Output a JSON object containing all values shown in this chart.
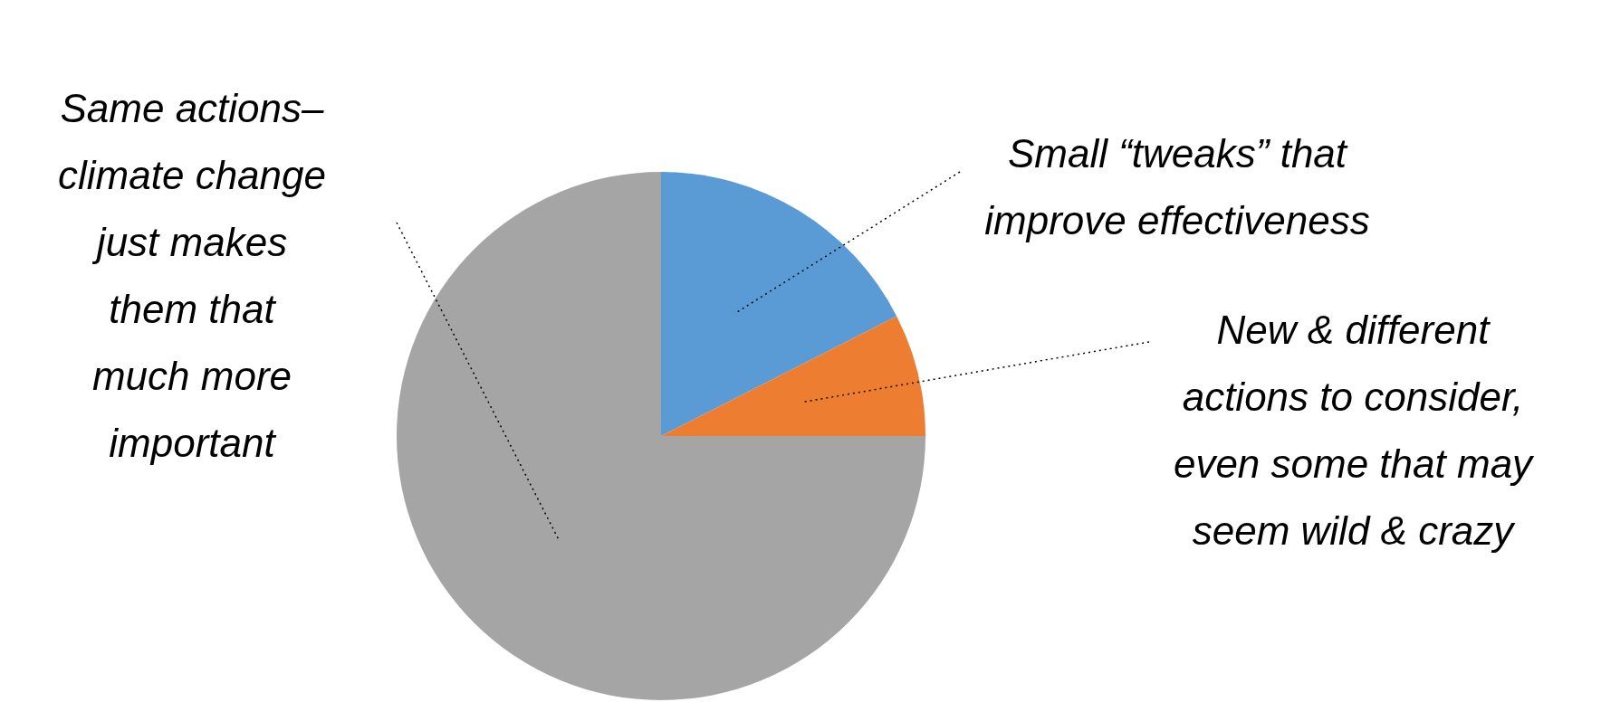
{
  "chart_data": {
    "type": "pie",
    "categories": [
      "Small “tweaks” that\nimprove effectiveness",
      "New & different\nactions to consider,\neven some that may\nseem wild & crazy",
      "Same actions–\nclimate change\njust makes\nthem that\nmuch more\nimportant"
    ],
    "values": [
      17.5,
      7.5,
      75
    ],
    "colors": [
      "#5b9bd5",
      "#ed7d31",
      "#a5a5a5"
    ]
  }
}
